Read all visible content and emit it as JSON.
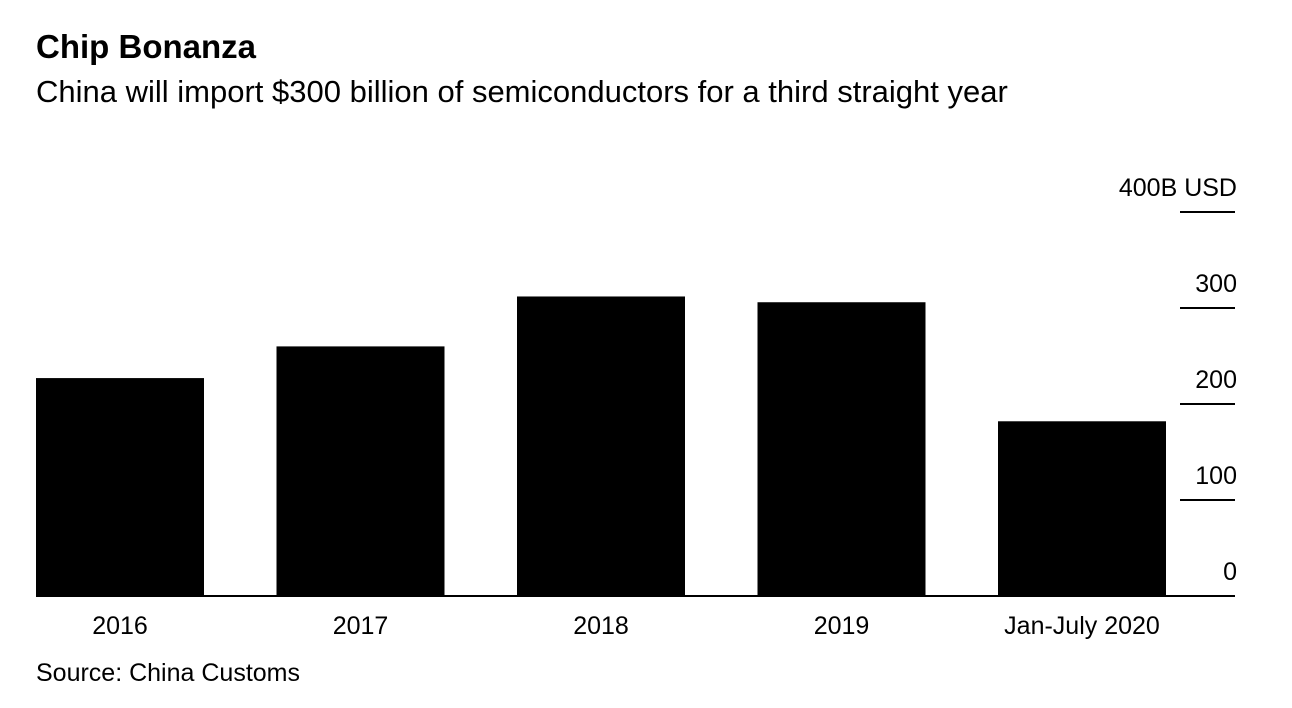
{
  "chart_data": {
    "type": "bar",
    "title": "Chip Bonanza",
    "subtitle": "China will import $300 billion of semiconductors for a third straight year",
    "categories": [
      "2016",
      "2017",
      "2018",
      "2019",
      "Jan-July 2020"
    ],
    "values": [
      227,
      260,
      312,
      306,
      182
    ],
    "xlabel": "",
    "ylabel": "",
    "ylim": [
      0,
      400
    ],
    "yticks": [
      0,
      100,
      200,
      300,
      400
    ],
    "ytick_labels": [
      "0",
      "100",
      "200",
      "300",
      "400B USD"
    ],
    "y_axis_position": "right",
    "grid": false,
    "bar_color": "#000000",
    "source": "Source: China Customs"
  }
}
